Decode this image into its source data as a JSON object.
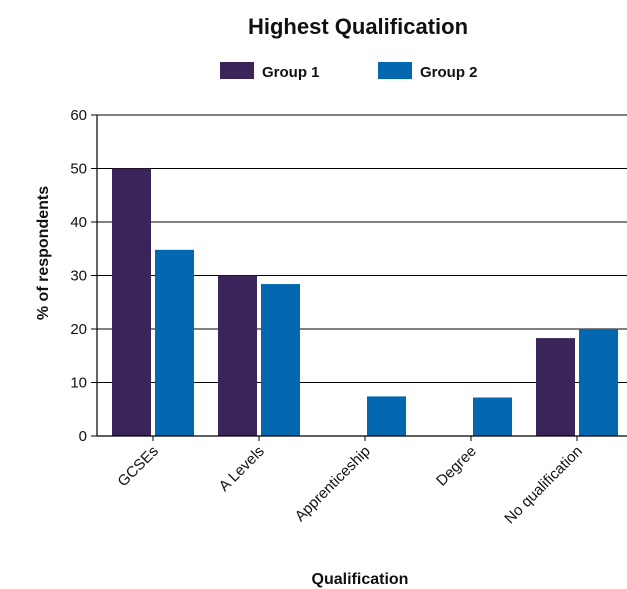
{
  "chart_data": {
    "type": "bar",
    "title": "Highest Qualification",
    "xlabel": "Qualification",
    "ylabel": "% of respondents",
    "categories": [
      "GCSEs",
      "A Levels",
      "Apprenticeship",
      "Degree",
      "No qualification"
    ],
    "series": [
      {
        "name": "Group 1",
        "color": "#3b2459",
        "values": [
          50,
          30,
          0,
          0,
          18.3
        ]
      },
      {
        "name": "Group 2",
        "color": "#0468b0",
        "values": [
          34.8,
          28.4,
          7.4,
          7.2,
          20
        ]
      }
    ],
    "ylim": [
      0,
      60
    ],
    "yticks": [
      0,
      10,
      20,
      30,
      40,
      50,
      60
    ],
    "grid": true,
    "legend_position": "top"
  }
}
